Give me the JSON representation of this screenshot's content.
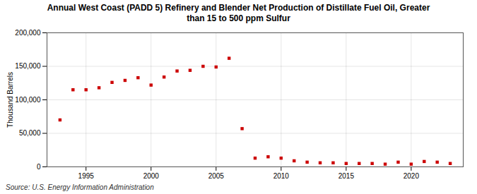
{
  "chart_data": {
    "type": "scatter",
    "title": "Annual West Coast (PADD 5) Refinery and Blender Net Production of Distillate Fuel Oil, Greater\nthan 15 to 500 ppm Sulfur",
    "ylabel": "Thousand Barrels",
    "source": "Source: U.S. Energy Information Administration",
    "x": [
      1993,
      1994,
      1995,
      1996,
      1997,
      1998,
      1999,
      2000,
      2001,
      2002,
      2003,
      2004,
      2005,
      2006,
      2007,
      2008,
      2009,
      2010,
      2011,
      2012,
      2013,
      2014,
      2015,
      2016,
      2017,
      2018,
      2019,
      2020,
      2021,
      2022,
      2023
    ],
    "values": [
      70000,
      115000,
      115000,
      118000,
      126000,
      129000,
      133000,
      122000,
      134000,
      143000,
      144000,
      150000,
      149000,
      162000,
      57000,
      13000,
      15000,
      13000,
      9000,
      7000,
      6000,
      6000,
      5000,
      5000,
      5000,
      4000,
      7000,
      4000,
      8000,
      7000,
      5000
    ],
    "color": "#cc0000",
    "marker": "square",
    "xlim": [
      1992,
      2024
    ],
    "xticks": [
      1995,
      2000,
      2005,
      2010,
      2015,
      2020
    ],
    "ylim": [
      0,
      200000
    ],
    "yticks": [
      0,
      {
        "value": 50000,
        "label": "50,000"
      },
      {
        "value": 100000,
        "label": "100,000"
      },
      {
        "value": 150000,
        "label": "150,000"
      },
      {
        "value": 200000,
        "label": "200,000"
      }
    ],
    "grid": true
  }
}
